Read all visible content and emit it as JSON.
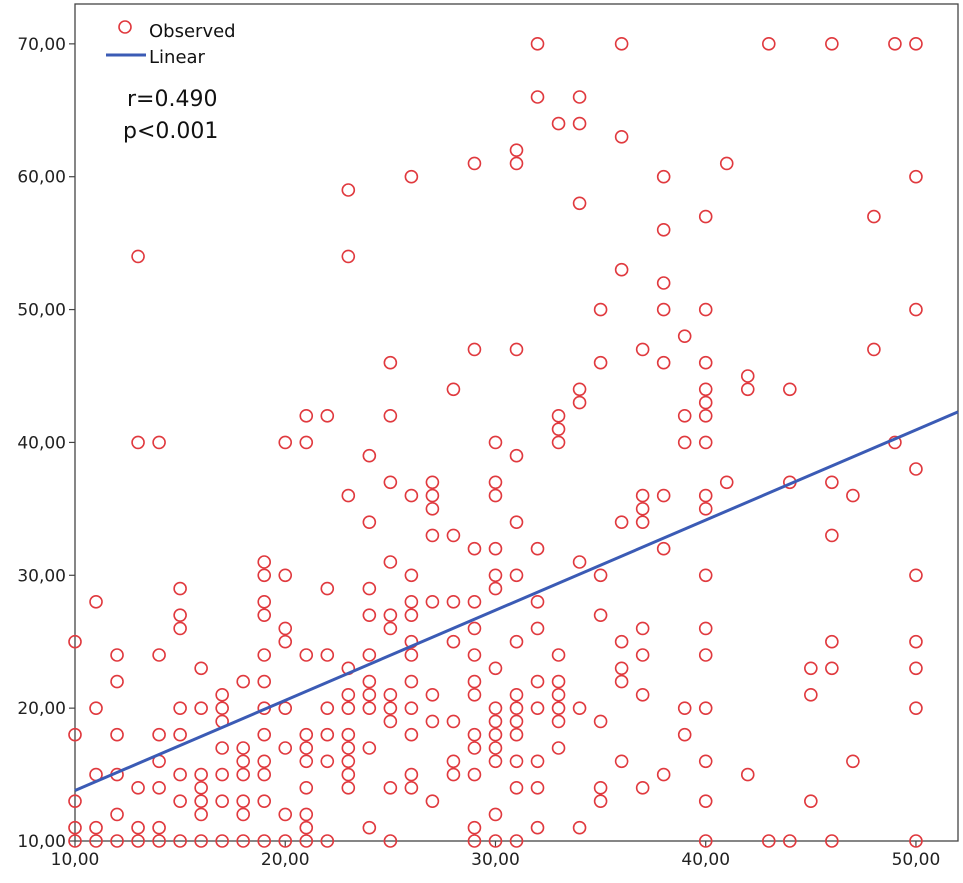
{
  "chart_data": {
    "type": "scatter",
    "title": "",
    "xlabel": "",
    "ylabel": "",
    "xlim": [
      10,
      52
    ],
    "ylim": [
      10,
      73
    ],
    "x_ticks": [
      "10,00",
      "20,00",
      "30,00",
      "40,00",
      "50,00"
    ],
    "y_ticks": [
      "10,00",
      "20,00",
      "30,00",
      "40,00",
      "50,00",
      "60,00",
      "70,00"
    ],
    "legend": {
      "placement": "top-left",
      "items": [
        "Observed",
        "Linear"
      ]
    },
    "annotations": [
      "r=0.490",
      "p<0.001"
    ],
    "grid": false,
    "colors": {
      "observed": "#e0393e",
      "linear": "#3b5bb5"
    },
    "series": [
      {
        "name": "Observed",
        "marker": "open-circle",
        "points": [
          [
            10,
            25
          ],
          [
            10,
            18
          ],
          [
            10,
            13
          ],
          [
            10,
            10
          ],
          [
            10,
            11
          ],
          [
            11,
            28
          ],
          [
            11,
            20
          ],
          [
            11,
            15
          ],
          [
            11,
            11
          ],
          [
            11,
            10
          ],
          [
            12,
            24
          ],
          [
            12,
            22
          ],
          [
            12,
            18
          ],
          [
            12,
            15
          ],
          [
            12,
            12
          ],
          [
            12,
            10
          ],
          [
            13,
            54
          ],
          [
            13,
            40
          ],
          [
            13,
            14
          ],
          [
            13,
            11
          ],
          [
            13,
            10
          ],
          [
            14,
            40
          ],
          [
            14,
            24
          ],
          [
            14,
            18
          ],
          [
            14,
            16
          ],
          [
            14,
            14
          ],
          [
            14,
            11
          ],
          [
            14,
            10
          ],
          [
            15,
            29
          ],
          [
            15,
            27
          ],
          [
            15,
            26
          ],
          [
            15,
            20
          ],
          [
            15,
            18
          ],
          [
            15,
            15
          ],
          [
            15,
            13
          ],
          [
            15,
            10
          ],
          [
            16,
            23
          ],
          [
            16,
            20
          ],
          [
            16,
            15
          ],
          [
            16,
            14
          ],
          [
            16,
            13
          ],
          [
            16,
            12
          ],
          [
            16,
            10
          ],
          [
            17,
            21
          ],
          [
            17,
            20
          ],
          [
            17,
            19
          ],
          [
            17,
            17
          ],
          [
            17,
            15
          ],
          [
            17,
            13
          ],
          [
            17,
            10
          ],
          [
            18,
            22
          ],
          [
            18,
            17
          ],
          [
            18,
            16
          ],
          [
            18,
            15
          ],
          [
            18,
            13
          ],
          [
            18,
            12
          ],
          [
            18,
            10
          ],
          [
            19,
            31
          ],
          [
            19,
            30
          ],
          [
            19,
            28
          ],
          [
            19,
            27
          ],
          [
            19,
            24
          ],
          [
            19,
            22
          ],
          [
            19,
            20
          ],
          [
            19,
            18
          ],
          [
            19,
            16
          ],
          [
            19,
            15
          ],
          [
            19,
            13
          ],
          [
            19,
            10
          ],
          [
            20,
            40
          ],
          [
            20,
            30
          ],
          [
            20,
            26
          ],
          [
            20,
            25
          ],
          [
            20,
            20
          ],
          [
            20,
            17
          ],
          [
            20,
            12
          ],
          [
            20,
            10
          ],
          [
            21,
            42
          ],
          [
            21,
            40
          ],
          [
            21,
            24
          ],
          [
            21,
            18
          ],
          [
            21,
            17
          ],
          [
            21,
            16
          ],
          [
            21,
            14
          ],
          [
            21,
            12
          ],
          [
            21,
            11
          ],
          [
            21,
            10
          ],
          [
            22,
            42
          ],
          [
            22,
            29
          ],
          [
            22,
            24
          ],
          [
            22,
            20
          ],
          [
            22,
            18
          ],
          [
            22,
            16
          ],
          [
            22,
            10
          ],
          [
            23,
            59
          ],
          [
            23,
            54
          ],
          [
            23,
            36
          ],
          [
            23,
            23
          ],
          [
            23,
            21
          ],
          [
            23,
            20
          ],
          [
            23,
            18
          ],
          [
            23,
            17
          ],
          [
            23,
            16
          ],
          [
            23,
            15
          ],
          [
            23,
            14
          ],
          [
            24,
            39
          ],
          [
            24,
            34
          ],
          [
            24,
            29
          ],
          [
            24,
            27
          ],
          [
            24,
            24
          ],
          [
            24,
            22
          ],
          [
            24,
            21
          ],
          [
            24,
            20
          ],
          [
            24,
            17
          ],
          [
            24,
            11
          ],
          [
            25,
            46
          ],
          [
            25,
            42
          ],
          [
            25,
            37
          ],
          [
            25,
            31
          ],
          [
            25,
            27
          ],
          [
            25,
            26
          ],
          [
            25,
            21
          ],
          [
            25,
            20
          ],
          [
            25,
            19
          ],
          [
            25,
            14
          ],
          [
            25,
            10
          ],
          [
            26,
            60
          ],
          [
            26,
            36
          ],
          [
            26,
            30
          ],
          [
            26,
            28
          ],
          [
            26,
            27
          ],
          [
            26,
            25
          ],
          [
            26,
            24
          ],
          [
            26,
            22
          ],
          [
            26,
            20
          ],
          [
            26,
            18
          ],
          [
            26,
            15
          ],
          [
            26,
            14
          ],
          [
            27,
            37
          ],
          [
            27,
            36
          ],
          [
            27,
            35
          ],
          [
            27,
            33
          ],
          [
            27,
            28
          ],
          [
            27,
            21
          ],
          [
            27,
            19
          ],
          [
            27,
            13
          ],
          [
            28,
            44
          ],
          [
            28,
            33
          ],
          [
            28,
            28
          ],
          [
            28,
            25
          ],
          [
            28,
            19
          ],
          [
            28,
            16
          ],
          [
            28,
            15
          ],
          [
            29,
            61
          ],
          [
            29,
            47
          ],
          [
            29,
            32
          ],
          [
            29,
            28
          ],
          [
            29,
            26
          ],
          [
            29,
            24
          ],
          [
            29,
            22
          ],
          [
            29,
            21
          ],
          [
            29,
            18
          ],
          [
            29,
            17
          ],
          [
            29,
            15
          ],
          [
            29,
            11
          ],
          [
            29,
            10
          ],
          [
            30,
            40
          ],
          [
            30,
            37
          ],
          [
            30,
            36
          ],
          [
            30,
            32
          ],
          [
            30,
            30
          ],
          [
            30,
            29
          ],
          [
            30,
            23
          ],
          [
            30,
            20
          ],
          [
            30,
            19
          ],
          [
            30,
            18
          ],
          [
            30,
            17
          ],
          [
            30,
            16
          ],
          [
            30,
            12
          ],
          [
            30,
            10
          ],
          [
            31,
            62
          ],
          [
            31,
            61
          ],
          [
            31,
            47
          ],
          [
            31,
            39
          ],
          [
            31,
            34
          ],
          [
            31,
            30
          ],
          [
            31,
            25
          ],
          [
            31,
            21
          ],
          [
            31,
            20
          ],
          [
            31,
            19
          ],
          [
            31,
            18
          ],
          [
            31,
            16
          ],
          [
            31,
            14
          ],
          [
            31,
            10
          ],
          [
            32,
            70
          ],
          [
            32,
            66
          ],
          [
            32,
            32
          ],
          [
            32,
            28
          ],
          [
            32,
            26
          ],
          [
            32,
            22
          ],
          [
            32,
            20
          ],
          [
            32,
            16
          ],
          [
            32,
            14
          ],
          [
            32,
            11
          ],
          [
            33,
            64
          ],
          [
            33,
            42
          ],
          [
            33,
            41
          ],
          [
            33,
            40
          ],
          [
            33,
            24
          ],
          [
            33,
            22
          ],
          [
            33,
            21
          ],
          [
            33,
            20
          ],
          [
            33,
            19
          ],
          [
            33,
            17
          ],
          [
            34,
            66
          ],
          [
            34,
            64
          ],
          [
            34,
            58
          ],
          [
            34,
            44
          ],
          [
            34,
            43
          ],
          [
            34,
            31
          ],
          [
            34,
            20
          ],
          [
            34,
            11
          ],
          [
            35,
            50
          ],
          [
            35,
            46
          ],
          [
            35,
            30
          ],
          [
            35,
            27
          ],
          [
            35,
            19
          ],
          [
            35,
            14
          ],
          [
            35,
            13
          ],
          [
            36,
            70
          ],
          [
            36,
            63
          ],
          [
            36,
            53
          ],
          [
            36,
            34
          ],
          [
            36,
            25
          ],
          [
            36,
            23
          ],
          [
            36,
            22
          ],
          [
            36,
            16
          ],
          [
            37,
            47
          ],
          [
            37,
            36
          ],
          [
            37,
            35
          ],
          [
            37,
            34
          ],
          [
            37,
            26
          ],
          [
            37,
            24
          ],
          [
            37,
            21
          ],
          [
            37,
            14
          ],
          [
            38,
            60
          ],
          [
            38,
            56
          ],
          [
            38,
            52
          ],
          [
            38,
            50
          ],
          [
            38,
            46
          ],
          [
            38,
            36
          ],
          [
            38,
            32
          ],
          [
            38,
            15
          ],
          [
            39,
            48
          ],
          [
            39,
            42
          ],
          [
            39,
            40
          ],
          [
            39,
            20
          ],
          [
            39,
            18
          ],
          [
            40,
            57
          ],
          [
            40,
            50
          ],
          [
            40,
            46
          ],
          [
            40,
            44
          ],
          [
            40,
            43
          ],
          [
            40,
            42
          ],
          [
            40,
            40
          ],
          [
            40,
            36
          ],
          [
            40,
            35
          ],
          [
            40,
            30
          ],
          [
            40,
            26
          ],
          [
            40,
            24
          ],
          [
            40,
            20
          ],
          [
            40,
            16
          ],
          [
            40,
            13
          ],
          [
            40,
            10
          ],
          [
            41,
            61
          ],
          [
            41,
            37
          ],
          [
            42,
            45
          ],
          [
            42,
            44
          ],
          [
            42,
            15
          ],
          [
            43,
            70
          ],
          [
            43,
            10
          ],
          [
            44,
            44
          ],
          [
            44,
            37
          ],
          [
            44,
            10
          ],
          [
            45,
            23
          ],
          [
            45,
            21
          ],
          [
            45,
            13
          ],
          [
            46,
            70
          ],
          [
            46,
            37
          ],
          [
            46,
            33
          ],
          [
            46,
            25
          ],
          [
            46,
            23
          ],
          [
            46,
            10
          ],
          [
            47,
            36
          ],
          [
            47,
            16
          ],
          [
            48,
            57
          ],
          [
            48,
            47
          ],
          [
            49,
            70
          ],
          [
            49,
            40
          ],
          [
            50,
            70
          ],
          [
            50,
            60
          ],
          [
            50,
            50
          ],
          [
            50,
            38
          ],
          [
            50,
            30
          ],
          [
            50,
            25
          ],
          [
            50,
            23
          ],
          [
            50,
            20
          ],
          [
            50,
            10
          ]
        ]
      },
      {
        "name": "Linear",
        "type": "line",
        "points": [
          [
            10,
            13.8
          ],
          [
            52,
            42.3
          ]
        ]
      }
    ]
  }
}
